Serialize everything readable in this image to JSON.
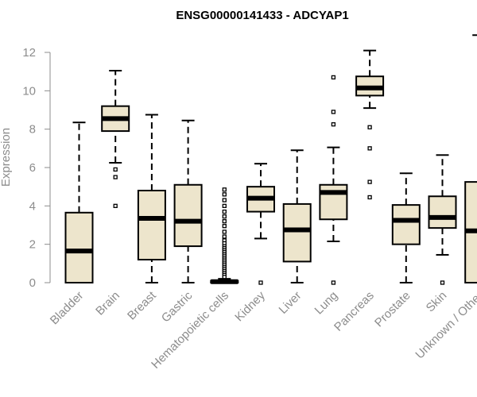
{
  "chart_data": {
    "type": "boxplot",
    "title": "ENSG00000141433 - ADCYAP1",
    "ylabel": "Expression",
    "xlabel": "",
    "ylim": [
      0,
      12.8
    ],
    "yticks": [
      0,
      2,
      4,
      6,
      8,
      10,
      12
    ],
    "box_fill": "#ede5cc",
    "box_stroke": "#000000",
    "axis_color": "#8c8c8c",
    "categories": [
      "Bladder",
      "Brain",
      "Breast",
      "Gastric",
      "Hematopoietic cells",
      "Kidney",
      "Liver",
      "Lung",
      "Pancreas",
      "Prostate",
      "Skin",
      "Unknown / Other"
    ],
    "boxes": [
      {
        "category": "Bladder",
        "min": 0,
        "q1": 0,
        "median": 1.65,
        "q3": 3.65,
        "max": 8.35,
        "outliers": []
      },
      {
        "category": "Brain",
        "min": 6.25,
        "q1": 7.9,
        "median": 8.55,
        "q3": 9.2,
        "max": 11.05,
        "outliers": [
          5.9,
          5.5,
          4.0
        ]
      },
      {
        "category": "Breast",
        "min": 0,
        "q1": 1.2,
        "median": 3.35,
        "q3": 4.8,
        "max": 8.75,
        "outliers": []
      },
      {
        "category": "Gastric",
        "min": 0,
        "q1": 1.9,
        "median": 3.2,
        "q3": 5.1,
        "max": 8.45,
        "outliers": []
      },
      {
        "category": "Hematopoietic cells",
        "min": 0,
        "q1": 0,
        "median": 0.05,
        "q3": 0.1,
        "max": 0.2,
        "outliers": [
          4.85,
          4.6,
          4.3,
          4.0,
          3.7,
          3.45,
          3.2,
          2.95,
          2.65,
          2.4,
          2.2,
          2.05,
          1.9,
          1.8,
          1.7,
          1.6,
          1.5,
          1.4,
          1.3,
          1.2,
          1.1,
          1.0,
          0.9,
          0.8,
          0.7,
          0.6,
          0.5,
          0.4,
          0.3
        ]
      },
      {
        "category": "Kidney",
        "min": 2.3,
        "q1": 3.7,
        "median": 4.4,
        "q3": 5.0,
        "max": 6.2,
        "outliers": [
          0
        ]
      },
      {
        "category": "Liver",
        "min": 0,
        "q1": 1.1,
        "median": 2.75,
        "q3": 4.1,
        "max": 6.9,
        "outliers": []
      },
      {
        "category": "Lung",
        "min": 2.15,
        "q1": 3.3,
        "median": 4.7,
        "q3": 5.1,
        "max": 7.05,
        "outliers": [
          10.7,
          8.9,
          8.25,
          0
        ]
      },
      {
        "category": "Pancreas",
        "min": 9.1,
        "q1": 9.75,
        "median": 10.15,
        "q3": 10.75,
        "max": 12.1,
        "outliers": [
          8.1,
          7.0,
          5.25,
          4.45
        ]
      },
      {
        "category": "Prostate",
        "min": 0,
        "q1": 2.0,
        "median": 3.25,
        "q3": 4.05,
        "max": 5.7,
        "outliers": []
      },
      {
        "category": "Skin",
        "min": 1.45,
        "q1": 2.85,
        "median": 3.4,
        "q3": 4.5,
        "max": 6.65,
        "outliers": [
          0
        ]
      },
      {
        "category": "Unknown / Other",
        "min": 0,
        "q1": 0,
        "median": 2.7,
        "q3": 5.25,
        "max": 12.9,
        "outliers": []
      }
    ]
  }
}
